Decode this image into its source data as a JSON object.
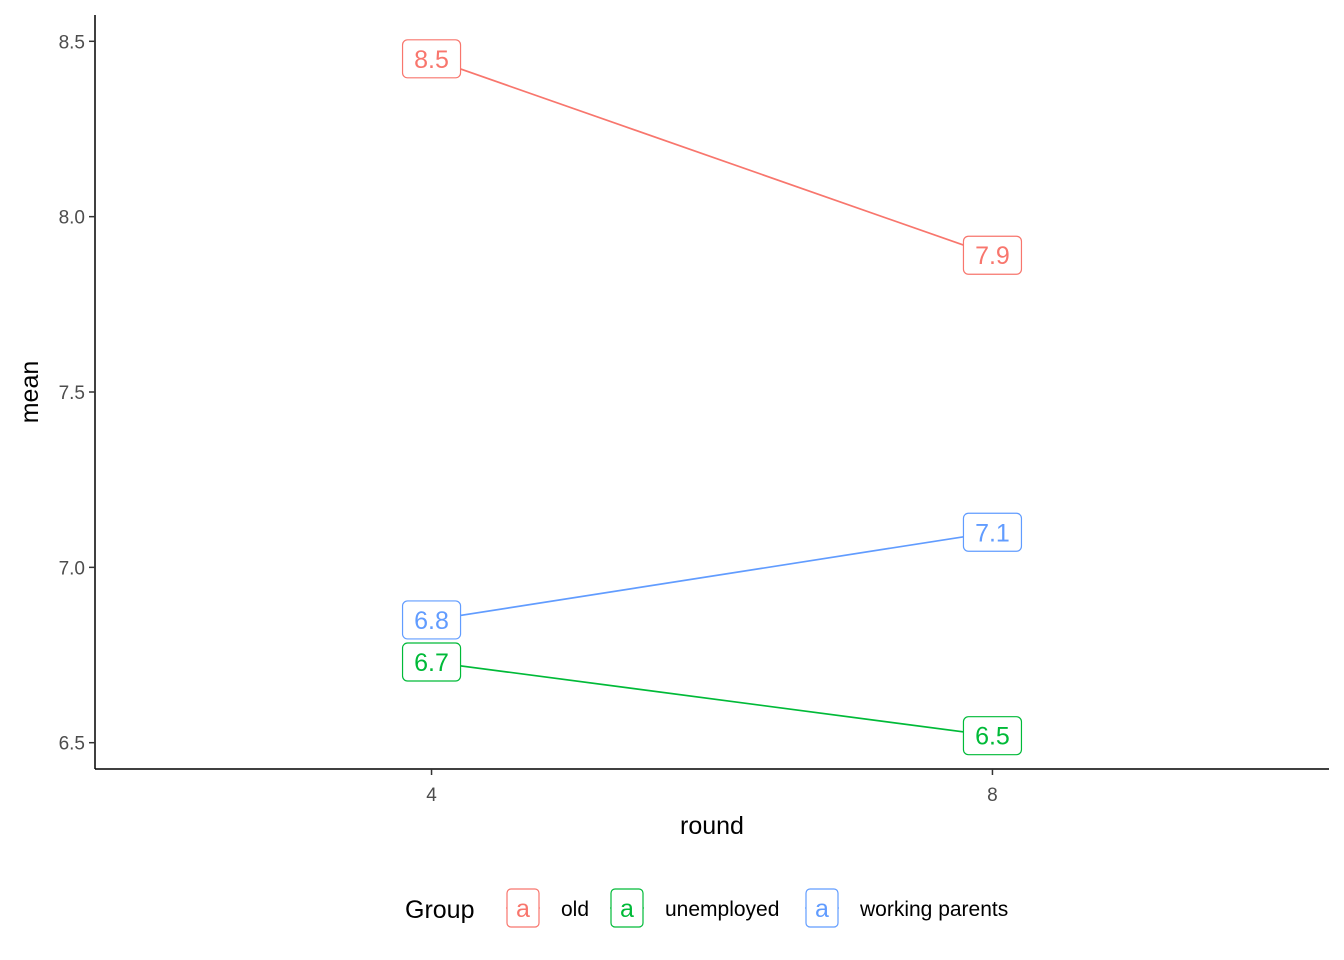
{
  "chart_data": {
    "type": "line",
    "xlabel": "round",
    "ylabel": "mean",
    "x": [
      4,
      8
    ],
    "x_ticks": [
      "4",
      "8"
    ],
    "xlim": [
      1.6,
      10.4
    ],
    "ylim": [
      6.425,
      8.575
    ],
    "y_ticks": [
      6.5,
      7.0,
      7.5,
      8.0,
      8.5
    ],
    "y_tick_labels": [
      "6.5",
      "7.0",
      "7.5",
      "8.0",
      "8.5"
    ],
    "grid": false,
    "legend": {
      "title": "Group",
      "placement": "bottom",
      "key_glyph": "a"
    },
    "series": [
      {
        "name": "old",
        "color": "#F8766D",
        "values": [
          8.45,
          7.89
        ],
        "labels": [
          "8.5",
          "7.9"
        ]
      },
      {
        "name": "unemployed",
        "color": "#00BA38",
        "values": [
          6.73,
          6.52
        ],
        "labels": [
          "6.7",
          "6.5"
        ]
      },
      {
        "name": "working parents",
        "color": "#619CFF",
        "values": [
          6.85,
          7.1
        ],
        "labels": [
          "6.8",
          "7.1"
        ]
      }
    ]
  }
}
